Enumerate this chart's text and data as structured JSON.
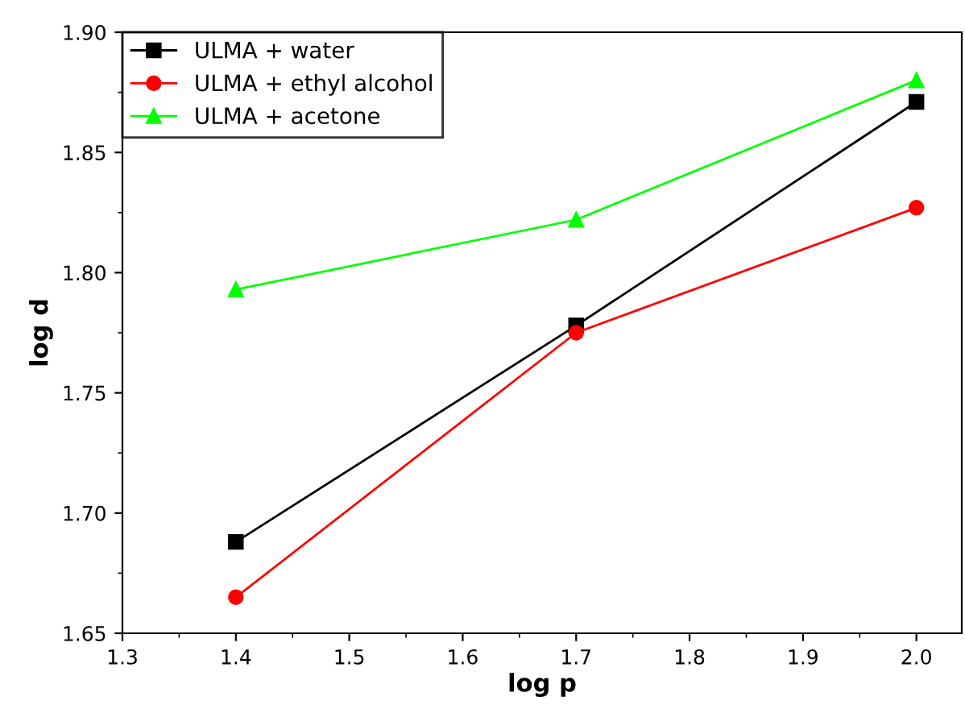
{
  "chart_data": {
    "type": "line",
    "xlabel": "log p",
    "ylabel": "log d",
    "x": [
      1.4,
      1.7,
      2.0
    ],
    "series": [
      {
        "name": "ULMA + water",
        "color": "#000000",
        "marker": "square",
        "values": [
          1.688,
          1.778,
          1.871
        ]
      },
      {
        "name": "ULMA + ethyl alcohol",
        "color": "#ff0000",
        "marker": "circle",
        "values": [
          1.665,
          1.775,
          1.827
        ]
      },
      {
        "name": "ULMA + acetone",
        "color": "#00ff00",
        "marker": "triangle",
        "values": [
          1.793,
          1.822,
          1.88
        ]
      }
    ],
    "xlim": [
      1.3,
      2.04
    ],
    "ylim": [
      1.65,
      1.9
    ],
    "xticks": [
      1.3,
      1.4,
      1.5,
      1.6,
      1.7,
      1.8,
      1.9,
      {
        "value": 2.0,
        "label": "2.0"
      }
    ],
    "yticks": [
      1.65,
      {
        "value": 1.7,
        "label": "1.70"
      },
      1.75,
      {
        "value": 1.8,
        "label": "1.80"
      },
      1.85,
      {
        "value": 1.9,
        "label": "1.90"
      }
    ],
    "legend": "top left",
    "grid": false
  }
}
